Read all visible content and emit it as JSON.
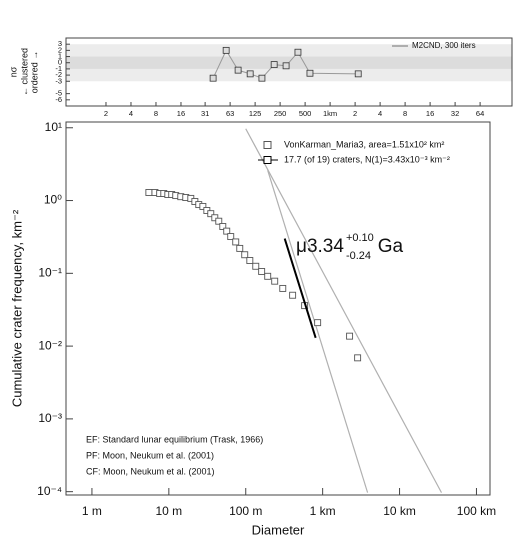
{
  "chart_data": [
    {
      "type": "line",
      "y_label": "nσ",
      "y_label_up": "← clustered",
      "y_label_down": "ordered →",
      "xlog": true,
      "xlim": [
        0.66,
        155000
      ],
      "xticks": [
        2,
        4,
        8,
        16,
        {
          "value": 31.25,
          "label": "31"
        },
        {
          "value": 62.5,
          "label": "63"
        },
        125,
        250,
        500,
        {
          "value": 1000,
          "label": "1km"
        },
        {
          "value": 2000,
          "label": "2"
        },
        {
          "value": 4000,
          "label": "4"
        },
        {
          "value": 8000,
          "label": "8"
        },
        {
          "value": 16000,
          "label": "16"
        },
        {
          "value": 32000,
          "label": "32"
        },
        {
          "value": 64000,
          "label": "64"
        }
      ],
      "ylim": [
        -7,
        4
      ],
      "yticks": [
        3,
        2,
        1,
        0,
        -1,
        -2,
        -3,
        -5,
        -6
      ],
      "legend": "upper right",
      "series": [
        {
          "name": "M2CND, 300 iters",
          "color": "#999999",
          "x": [
            39,
            56,
            78,
            109,
            151,
            212,
            295,
            410,
            572,
            2180
          ],
          "values": [
            -2.5,
            2,
            -1.2,
            -1.8,
            -2.5,
            -0.3,
            -0.5,
            1.7,
            -1.7,
            -1.8
          ]
        }
      ]
    },
    {
      "type": "scatter",
      "x_label": "Diameter",
      "y_label": "Cumulative crater frequency, km⁻²",
      "xlog": true,
      "ylog": true,
      "xlim": [
        0.46,
        150000
      ],
      "ylim": [
        9e-05,
        12
      ],
      "xticks": [
        {
          "value": 1,
          "label": "1 m"
        },
        {
          "value": 10,
          "label": "10 m"
        },
        {
          "value": 100,
          "label": "100 m"
        },
        {
          "value": 1000,
          "label": "1 km"
        },
        {
          "value": 10000,
          "label": "10 km"
        },
        {
          "value": 100000,
          "label": "100 km"
        }
      ],
      "yticks": [
        {
          "value": 10,
          "label": "10¹"
        },
        {
          "value": 1,
          "label": "10⁰"
        },
        {
          "value": 0.1,
          "label": "10⁻¹"
        },
        {
          "value": 0.01,
          "label": "10⁻²"
        },
        {
          "value": 0.001,
          "label": "10⁻³"
        },
        {
          "value": 0.0001,
          "label": "10⁻⁴"
        }
      ],
      "series": [
        {
          "name": "VonKarman_Maria3, area=1.51x10² km²",
          "color": "#555555",
          "marker": "square",
          "x": [
            5.5,
            6.6,
            7.6,
            8.6,
            9.7,
            10.9,
            12.3,
            14.3,
            16.6,
            19.3,
            21.8,
            24.5,
            27.7,
            31.2,
            35.1,
            39.6,
            44.6,
            50.3,
            56.6,
            63.8,
            74.1,
            83.6,
            97,
            113,
            135,
            161,
            193,
            238,
            303,
            407,
            583,
            861,
            2240,
            2850
          ],
          "values": [
            1.29,
            1.29,
            1.25,
            1.25,
            1.21,
            1.21,
            1.17,
            1.13,
            1.1,
            1.07,
            0.97,
            0.88,
            0.83,
            0.73,
            0.66,
            0.58,
            0.52,
            0.44,
            0.38,
            0.32,
            0.27,
            0.22,
            0.18,
            0.15,
            0.125,
            0.106,
            0.091,
            0.078,
            0.062,
            0.05,
            0.036,
            0.021,
            0.0137,
            0.0069
          ]
        },
        {
          "name": "17.7 (of 19) craters, N(1)=3.43x10⁻³ km⁻²",
          "color": "#000000",
          "marker": "line",
          "x": [
            321,
            811
          ],
          "values": [
            0.3,
            0.013
          ]
        }
      ],
      "reference_lines": [
        {
          "color": "#b0b0b0",
          "x": [
            100,
            35100
          ],
          "values": [
            9.7,
            9.7e-05
          ]
        },
        {
          "color": "#b0b0b0",
          "x": [
            193,
            3840
          ],
          "values": [
            2.6,
            9.7e-05
          ]
        }
      ],
      "age": {
        "prefix": "μ3.34",
        "plus": "+0.10",
        "minus": "-0.24",
        "unit": "Ga"
      },
      "notes": [
        "EF: Standard lunar equilibrium (Trask, 1966)",
        "PF: Moon, Neukum et al. (2001)",
        "CF: Moon, Neukum et al. (2001)"
      ]
    }
  ]
}
